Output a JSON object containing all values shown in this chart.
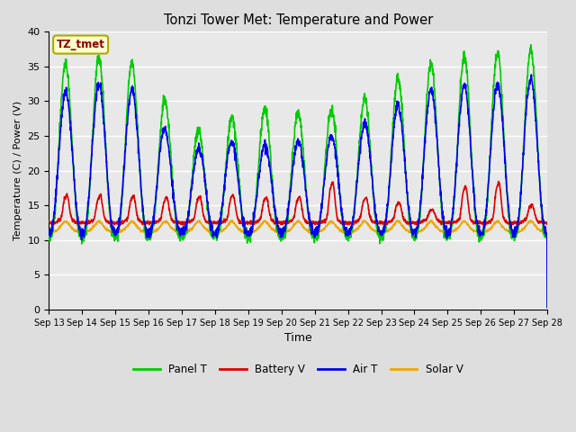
{
  "title": "Tonzi Tower Met: Temperature and Power",
  "xlabel": "Time",
  "ylabel": "Temperature (C) / Power (V)",
  "annotation": "TZ_tmet",
  "annotation_color": "#8B0000",
  "annotation_bg": "#FFFFCC",
  "annotation_edge": "#AAAA00",
  "ylim": [
    0,
    40
  ],
  "yticks": [
    0,
    5,
    10,
    15,
    20,
    25,
    30,
    35,
    40
  ],
  "xtick_labels": [
    "Sep 13",
    "Sep 14",
    "Sep 15",
    "Sep 16",
    "Sep 17",
    "Sep 18",
    "Sep 19",
    "Sep 20",
    "Sep 21",
    "Sep 22",
    "Sep 23",
    "Sep 24",
    "Sep 25",
    "Sep 26",
    "Sep 27",
    "Sep 28"
  ],
  "colors": {
    "Panel T": "#00CC00",
    "Battery V": "#DD0000",
    "Air T": "#0000EE",
    "Solar V": "#EEA800"
  },
  "bg_color": "#E8E8E8",
  "grid_color": "#FFFFFF",
  "fig_bg": "#DEDEDE",
  "line_width": 1.2,
  "panel_peaks": [
    35.2,
    35.8,
    37.0,
    34.0,
    26.0,
    25.5,
    29.5,
    28.3,
    28.2,
    29.7,
    31.2,
    35.5,
    35.8,
    37.0,
    37.0,
    38.0
  ],
  "air_peaks": [
    30.5,
    32.0,
    33.0,
    30.5,
    21.5,
    24.8,
    23.5,
    24.0,
    24.5,
    25.5,
    28.0,
    30.8,
    32.5,
    32.0,
    33.0,
    33.5
  ],
  "night_min_panel": 10.5,
  "night_min_air": 11.0,
  "batt_base": 12.5,
  "batt_spike_height": [
    15.8,
    15.8,
    15.7,
    15.5,
    15.6,
    15.8,
    15.5,
    15.5,
    17.5,
    15.5,
    14.8,
    13.8,
    17.0,
    17.5,
    14.5,
    14.5
  ],
  "solar_base": 11.2,
  "solar_peak": 12.3
}
